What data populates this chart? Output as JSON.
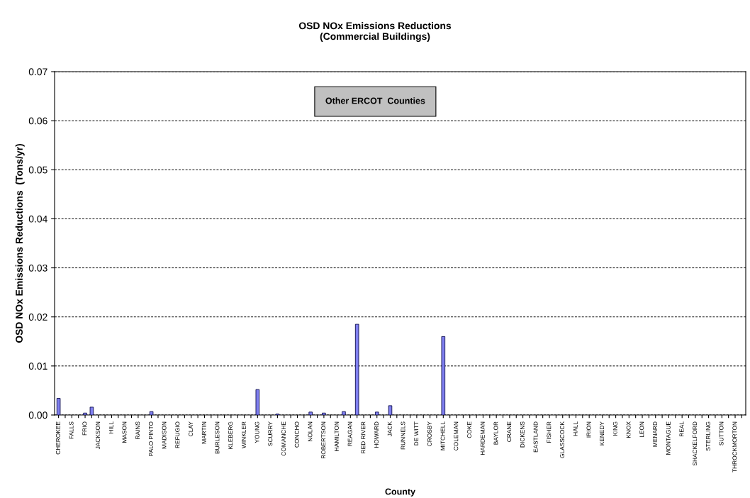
{
  "chart_data": {
    "type": "bar",
    "title": "OSD NOx Emissions Reductions\n(Commercial Buildings)",
    "xlabel": "County",
    "ylabel": "OSD NOx Emissions Reductions  (Tons/yr)",
    "annotations": [
      "Other ERCOT  Counties"
    ],
    "categories": [
      "CHEROKEE",
      null,
      "FALLS",
      null,
      "FRIO",
      null,
      "JACKSON",
      null,
      "HILL",
      null,
      "MASON",
      null,
      "RAINS",
      null,
      "PALO PINTO",
      null,
      "MADISON",
      null,
      "REFUGIO",
      null,
      "CLAY",
      null,
      "MARTIN",
      null,
      "BURLESON",
      null,
      "KLEBERG",
      null,
      "WINKLER",
      null,
      "YOUNG",
      null,
      "SCURRY",
      null,
      "COMANCHE",
      null,
      "CONCHO",
      null,
      "NOLAN",
      null,
      "ROBERTSON",
      null,
      "HAMILTON",
      null,
      "REAGAN",
      null,
      "RED RIVER",
      null,
      "HOWARD",
      null,
      "JACK",
      null,
      "RUNNELS",
      null,
      "DE WITT",
      null,
      "CROSBY",
      null,
      "MITCHELL",
      null,
      "COLEMAN",
      null,
      "COKE",
      null,
      "HARDEMAN",
      null,
      "BAYLOR",
      null,
      "CRANE",
      null,
      "DICKENS",
      null,
      "EASTLAND",
      null,
      "FISHER",
      null,
      "GLASSCOCK",
      null,
      "HALL",
      null,
      "IRION",
      null,
      "KENEDY",
      null,
      "KING",
      null,
      "KNOX",
      null,
      "LEON",
      null,
      "MENARD",
      null,
      "MONTAGUE",
      null,
      "REAL",
      null,
      "SHACKELFORD",
      null,
      "STERLING",
      null,
      "SUTTON",
      null,
      "THROCKMORTON",
      null
    ],
    "values": [
      0.0034,
      0,
      0,
      0,
      0.0004,
      0.0016,
      0,
      0,
      0,
      0,
      0,
      0,
      0,
      0,
      0.0007,
      0,
      0,
      0,
      0,
      0,
      0,
      0,
      0,
      0,
      0,
      0,
      0,
      0,
      0,
      0,
      0.0052,
      0,
      0,
      0.0002,
      0,
      0,
      0,
      0,
      0.0006,
      0,
      0.0004,
      0,
      0,
      0.0007,
      0,
      0.0185,
      0,
      0,
      0.0006,
      0,
      0.0019,
      0,
      0,
      0,
      0,
      0,
      0,
      0,
      0.016,
      0,
      0,
      0,
      0,
      0,
      0,
      0,
      0,
      0,
      0,
      0,
      0,
      0,
      0,
      0,
      0,
      0,
      0,
      0,
      0,
      0,
      0,
      0,
      0,
      0,
      0,
      0,
      0,
      0,
      0,
      0,
      0,
      0,
      0,
      0,
      0,
      0,
      0,
      0,
      0,
      0,
      0,
      0,
      0,
      0
    ],
    "color": "#8080f0",
    "ylim": [
      0,
      0.07
    ],
    "yticks": [
      {
        "value": 0,
        "label": "0.00"
      },
      {
        "value": 0.01,
        "label": "0.01"
      },
      {
        "value": 0.02,
        "label": "0.02"
      },
      {
        "value": 0.03,
        "label": "0.03"
      },
      {
        "value": 0.04,
        "label": "0.04"
      },
      {
        "value": 0.05,
        "label": "0.05"
      },
      {
        "value": 0.06,
        "label": "0.06"
      },
      {
        "value": 0.07,
        "label": "0.07"
      }
    ],
    "grid": "y"
  }
}
